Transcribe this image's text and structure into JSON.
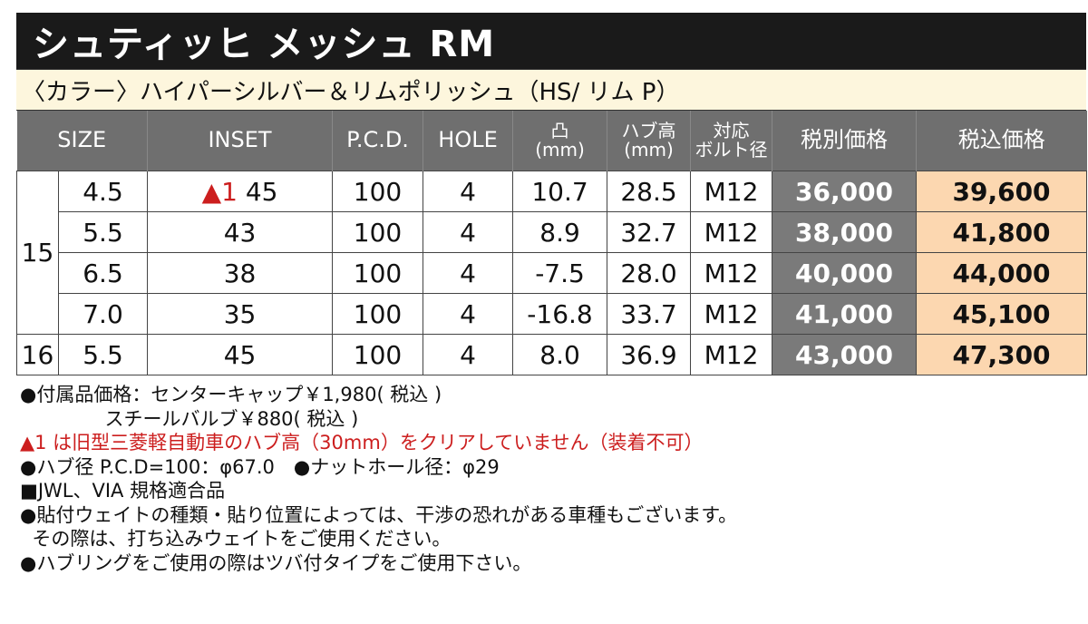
{
  "title": "シュティッヒ メッシュ RM",
  "color_line": "〈カラー〉ハイパーシルバー＆リムポリッシュ（HS/ リム P）",
  "headers": {
    "size": "SIZE",
    "inset": "INSET",
    "pcd": "P.C.D.",
    "hole": "HOLE",
    "convex_line1": "凸",
    "convex_line2": "(mm)",
    "hub_line1": "ハブ高",
    "hub_line2": "(mm)",
    "bolt_line1": "対応",
    "bolt_line2": "ボルト径",
    "net_price": "税別価格",
    "tax_price": "税込価格"
  },
  "groups": [
    {
      "rim": "15",
      "rows": [
        {
          "size": "4.5",
          "inset_mark": "▲1",
          "inset": "45",
          "pcd": "100",
          "hole": "4",
          "convex": "10.7",
          "hub": "28.5",
          "bolt": "M12",
          "net": "36,000",
          "tax": "39,600"
        },
        {
          "size": "5.5",
          "inset_mark": "",
          "inset": "43",
          "pcd": "100",
          "hole": "4",
          "convex": "8.9",
          "hub": "32.7",
          "bolt": "M12",
          "net": "38,000",
          "tax": "41,800"
        },
        {
          "size": "6.5",
          "inset_mark": "",
          "inset": "38",
          "pcd": "100",
          "hole": "4",
          "convex": "-7.5",
          "hub": "28.0",
          "bolt": "M12",
          "net": "40,000",
          "tax": "44,000"
        },
        {
          "size": "7.0",
          "inset_mark": "",
          "inset": "35",
          "pcd": "100",
          "hole": "4",
          "convex": "-16.8",
          "hub": "33.7",
          "bolt": "M12",
          "net": "41,000",
          "tax": "45,100"
        }
      ]
    },
    {
      "rim": "16",
      "rows": [
        {
          "size": "5.5",
          "inset_mark": "",
          "inset": "45",
          "pcd": "100",
          "hole": "4",
          "convex": "8.0",
          "hub": "36.9",
          "bolt": "M12",
          "net": "43,000",
          "tax": "47,300"
        }
      ]
    }
  ],
  "notes": [
    {
      "text": "●付属品価格：センターキャップ￥1,980( 税込 )",
      "red": false
    },
    {
      "text": "              スチールバルブ￥880( 税込 )",
      "red": false
    },
    {
      "text": "▲1 は旧型三菱軽自動車のハブ高（30mm）をクリアしていません（装着不可）",
      "red": true
    },
    {
      "text": "●ハブ径 P.C.D=100：φ67.0　●ナットホール径：φ29",
      "red": false
    },
    {
      "text": "■JWL、VIA 規格適合品",
      "red": false
    },
    {
      "text": "●貼付ウェイトの種類・貼り位置によっては、干渉の恐れがある車種もございます。",
      "red": false
    },
    {
      "text": "  その際は、打ち込みウェイトをご使用ください。",
      "red": false
    },
    {
      "text": "●ハブリングをご使用の際はツバ付タイプをご使用下さい。",
      "red": false
    }
  ]
}
